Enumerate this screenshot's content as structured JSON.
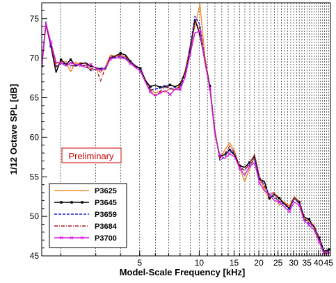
{
  "chart_data": {
    "type": "line",
    "xscale": "log",
    "xlim": [
      1.6,
      46
    ],
    "ylim": [
      45,
      77
    ],
    "xlabel": "Model-Scale Frequency [kHz]",
    "ylabel": "1/12 Octave SPL [dB]",
    "annotation": "Preliminary",
    "grid": "vertical dashed lines",
    "legend_position": "bottom-left",
    "xticks": [
      {
        "value": 5,
        "label": "5"
      },
      {
        "value": 10,
        "label": "10"
      },
      {
        "value": 15,
        "label": "15"
      },
      {
        "value": 20,
        "label": "20"
      },
      {
        "value": 25,
        "label": "25"
      },
      {
        "value": 30,
        "label": "30"
      },
      {
        "value": 35,
        "label": "35"
      },
      {
        "value": 40,
        "label": "40"
      },
      {
        "value": 45,
        "label": "45"
      }
    ],
    "yticks": [
      {
        "value": 45,
        "label": "45"
      },
      {
        "value": 50,
        "label": "50"
      },
      {
        "value": 55,
        "label": "55"
      },
      {
        "value": 60,
        "label": "60"
      },
      {
        "value": 65,
        "label": "65"
      },
      {
        "value": 70,
        "label": "70"
      },
      {
        "value": 75,
        "label": "75"
      }
    ],
    "x": [
      1.6,
      1.68,
      1.78,
      1.89,
      2.0,
      2.12,
      2.24,
      2.38,
      2.52,
      2.67,
      2.83,
      3.0,
      3.17,
      3.36,
      3.56,
      3.78,
      4.0,
      4.24,
      4.49,
      4.76,
      5.04,
      5.34,
      5.66,
      5.99,
      6.35,
      6.73,
      7.13,
      7.55,
      8.0,
      8.48,
      8.98,
      9.51,
      10.08,
      10.68,
      11.31,
      11.99,
      12.7,
      13.45,
      14.25,
      15.1,
      16.0,
      16.95,
      17.96,
      19.03,
      20.16,
      21.36,
      22.63,
      23.97,
      25.4,
      26.91,
      28.51,
      30.2,
      32.0,
      33.9,
      35.92,
      38.05,
      40.32,
      42.71,
      45.25
    ],
    "series": [
      {
        "name": "P3625",
        "color": "#f08a24",
        "dash": "solid",
        "marker": "none",
        "values": [
          69.2,
          74.5,
          71.8,
          69.3,
          69.6,
          69.4,
          68.3,
          69.5,
          69.0,
          69.1,
          68.5,
          68.6,
          68.2,
          68.9,
          70.4,
          70.2,
          70.3,
          70.1,
          69.4,
          69.1,
          68.6,
          67.3,
          66.1,
          65.6,
          65.8,
          65.7,
          66.2,
          66.0,
          66.6,
          68.4,
          71.5,
          74.0,
          76.8,
          70.2,
          66.4,
          61.0,
          57.2,
          58.4,
          59.3,
          58.2,
          56.2,
          54.4,
          56.0,
          57.5,
          54.8,
          53.5,
          52.1,
          52.9,
          51.4,
          51.8,
          51.3,
          52.5,
          51.9,
          49.8,
          49.2,
          48.9,
          47.2,
          45.4,
          45.9
        ]
      },
      {
        "name": "P3645",
        "color": "#000000",
        "dash": "solid",
        "marker": "square",
        "values": [
          69.0,
          74.3,
          71.5,
          68.2,
          69.8,
          69.2,
          69.8,
          69.0,
          69.3,
          69.4,
          69.0,
          68.8,
          68.6,
          68.7,
          70.0,
          70.3,
          70.6,
          70.4,
          69.6,
          69.0,
          68.7,
          67.2,
          66.4,
          66.6,
          66.3,
          66.4,
          66.6,
          66.4,
          66.7,
          68.2,
          70.8,
          74.9,
          73.0,
          69.6,
          66.5,
          60.5,
          57.6,
          57.8,
          58.4,
          57.7,
          56.4,
          56.2,
          56.8,
          57.6,
          54.7,
          54.4,
          52.3,
          52.8,
          52.3,
          51.6,
          51.0,
          52.3,
          51.8,
          49.9,
          49.6,
          48.6,
          47.3,
          45.6,
          45.8
        ]
      },
      {
        "name": "P3659",
        "color": "#1a1ad6",
        "dash": "dashed",
        "marker": "none",
        "values": [
          69.1,
          74.6,
          71.3,
          69.0,
          69.3,
          69.3,
          69.1,
          69.0,
          69.2,
          69.0,
          68.4,
          68.6,
          68.8,
          68.6,
          70.1,
          70.1,
          70.2,
          70.0,
          69.5,
          69.0,
          68.5,
          67.0,
          66.0,
          66.1,
          66.2,
          66.6,
          66.1,
          66.3,
          66.2,
          68.0,
          71.3,
          75.3,
          74.2,
          69.7,
          66.1,
          60.8,
          57.1,
          57.5,
          58.5,
          57.9,
          56.0,
          55.9,
          56.5,
          57.2,
          54.9,
          53.9,
          52.8,
          52.4,
          51.9,
          51.5,
          50.9,
          52.3,
          51.6,
          49.6,
          49.1,
          48.7,
          47.1,
          45.5,
          45.7
        ]
      },
      {
        "name": "P3684",
        "color": "#b5141e",
        "dash": "dashdot",
        "marker": "none",
        "values": [
          69.3,
          74.2,
          71.6,
          68.8,
          69.5,
          69.6,
          68.9,
          69.2,
          69.4,
          69.3,
          68.6,
          68.9,
          67.1,
          68.9,
          70.2,
          70.3,
          70.4,
          70.2,
          69.4,
          68.9,
          68.3,
          67.1,
          65.9,
          65.3,
          65.8,
          66.3,
          66.2,
          65.9,
          66.5,
          68.1,
          70.6,
          74.6,
          73.8,
          69.6,
          66.3,
          60.6,
          57.4,
          57.9,
          58.9,
          58.0,
          56.3,
          55.8,
          56.7,
          57.8,
          55.0,
          53.8,
          52.6,
          53.1,
          51.9,
          51.7,
          51.1,
          52.4,
          51.8,
          49.7,
          49.3,
          48.8,
          47.2,
          45.3,
          45.6
        ]
      },
      {
        "name": "P3700",
        "color": "#d81be0",
        "dash": "solid",
        "marker": "cross",
        "values": [
          69.2,
          74.4,
          72.0,
          69.5,
          69.4,
          69.0,
          69.4,
          69.2,
          69.1,
          68.8,
          69.2,
          68.7,
          68.5,
          68.8,
          69.9,
          70.0,
          70.1,
          69.9,
          69.3,
          68.8,
          68.4,
          67.0,
          65.7,
          65.2,
          65.6,
          65.9,
          65.4,
          66.1,
          66.0,
          67.6,
          70.4,
          73.2,
          73.4,
          69.4,
          66.2,
          60.4,
          57.7,
          57.3,
          57.9,
          57.5,
          56.1,
          55.2,
          56.3,
          56.8,
          54.2,
          53.2,
          52.7,
          52.0,
          51.8,
          51.2,
          50.6,
          51.8,
          51.4,
          49.4,
          48.9,
          48.3,
          46.8,
          45.2,
          45.4
        ]
      }
    ]
  }
}
